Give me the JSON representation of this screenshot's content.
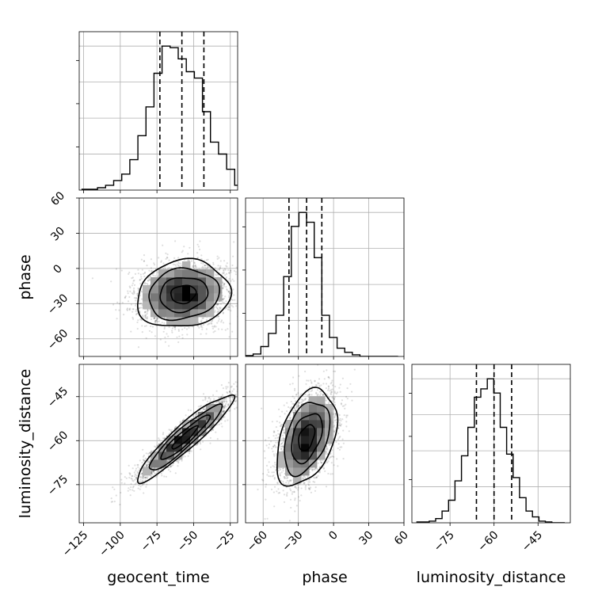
{
  "chart_data": {
    "type": "corner",
    "grid": true,
    "parameters": [
      {
        "name": "geocent_time",
        "xlabel": "geocent_time",
        "range": [
          -128,
          -20
        ],
        "ticks": [
          -125,
          -100,
          -75,
          -50,
          -25
        ],
        "tick_labels": [
          "−125",
          "−100",
          "−75",
          "−50",
          "−25"
        ],
        "quantiles": [
          -73,
          -58,
          -43
        ],
        "histogram": {
          "bin_edges": [
            -126.5,
            -121,
            -115.5,
            -110,
            -104.5,
            -99,
            -93.5,
            -88,
            -82.5,
            -77,
            -71.5,
            -66,
            -60.5,
            -55,
            -49.5,
            -44,
            -38.5,
            -33,
            -27.5,
            -22,
            -16.5
          ],
          "counts": [
            1,
            1,
            3,
            6,
            12,
            20,
            38,
            68,
            104,
            146,
            180,
            178,
            164,
            148,
            140,
            98,
            60,
            45,
            26,
            6
          ]
        }
      },
      {
        "name": "phase",
        "ylabel": "phase",
        "xlabel": "phase",
        "range": [
          -75,
          60
        ],
        "ticks": [
          -60,
          -30,
          0,
          30,
          60
        ],
        "tick_labels": [
          "−60",
          "−30",
          "0",
          "30",
          "60"
        ],
        "quantiles": [
          -38,
          -23,
          -10
        ],
        "histogram": {
          "bin_edges": [
            -75,
            -68.5,
            -62,
            -55.5,
            -49,
            -42.5,
            -36,
            -29.5,
            -23,
            -16.5,
            -10,
            -3.5,
            3,
            9.5,
            16,
            22.5,
            29,
            35.5,
            42,
            48.5,
            55
          ],
          "counts": [
            1,
            3,
            12,
            28,
            50,
            97,
            158,
            175,
            163,
            120,
            50,
            23,
            10,
            5,
            2,
            0,
            0,
            0,
            0,
            0
          ]
        },
        "vs_geocent_time": {
          "center": [
            -57,
            -22
          ],
          "sx": 15.5,
          "sy": 14,
          "rho": 0.12
        }
      },
      {
        "name": "luminosity_distance",
        "ylabel": "luminosity_distance",
        "xlabel": "luminosity_distance",
        "range": [
          -88,
          -34
        ],
        "ticks": [
          -75,
          -60,
          -45
        ],
        "tick_labels": [
          "−75",
          "−60",
          "−45"
        ],
        "quantiles": [
          -66,
          -60,
          -54
        ],
        "histogram": {
          "bin_edges": [
            -86.5,
            -84.3,
            -82.1,
            -79.9,
            -77.7,
            -75.5,
            -73.3,
            -71.1,
            -68.9,
            -66.7,
            -64.5,
            -62.3,
            -60.1,
            -57.9,
            -55.7,
            -53.5,
            -51.3,
            -49.1,
            -46.9,
            -44.7,
            -42.5,
            -40.3,
            -38.1,
            -35.9
          ],
          "counts": [
            1,
            1,
            2,
            5,
            14,
            27,
            50,
            80,
            114,
            150,
            160,
            172,
            155,
            114,
            82,
            54,
            30,
            14,
            7,
            2,
            1,
            0,
            0
          ]
        },
        "vs_geocent_time": {
          "center": [
            -56,
            -59
          ],
          "sx": 16,
          "sy": 7.2,
          "rho": 0.93
        },
        "vs_phase": {
          "center": [
            -23,
            -59
          ],
          "sx": 12.5,
          "sy": 8,
          "rho": 0.4
        }
      }
    ]
  }
}
